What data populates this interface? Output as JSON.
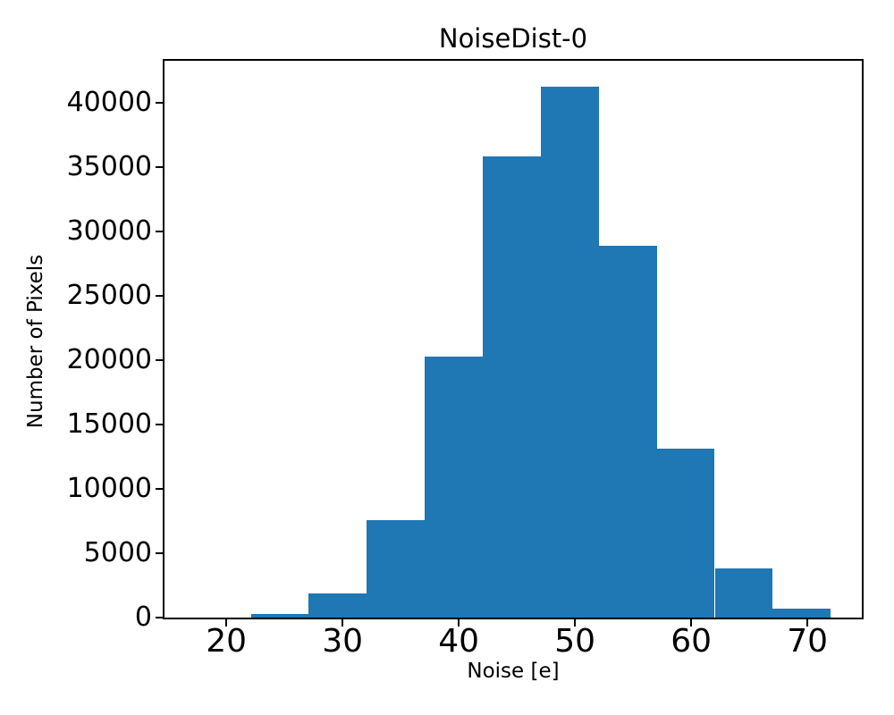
{
  "figure": {
    "background": "#ffffff",
    "text_color": "#000000"
  },
  "chart_data": {
    "type": "bar",
    "subtype": "histogram",
    "title": "NoiseDist-0",
    "xlabel": "Noise [e]",
    "ylabel": "Number of Pixels",
    "bin_edges": [
      22.1,
      27.09,
      32.08,
      37.07,
      42.06,
      47.05,
      52.04,
      57.03,
      62.02,
      67.01,
      72.0
    ],
    "counts": [
      300,
      1900,
      7550,
      20300,
      35800,
      41200,
      28900,
      13100,
      3840,
      700
    ],
    "xticks": [
      20,
      30,
      40,
      50,
      60,
      70
    ],
    "yticks": [
      0,
      5000,
      10000,
      15000,
      20000,
      25000,
      30000,
      35000,
      40000
    ],
    "xlim": [
      14.6,
      74.75
    ],
    "ylim": [
      0,
      43300
    ],
    "bar_color": "#1f77b4",
    "axis_color": "#000000",
    "grid": false,
    "legend_position": "none"
  }
}
